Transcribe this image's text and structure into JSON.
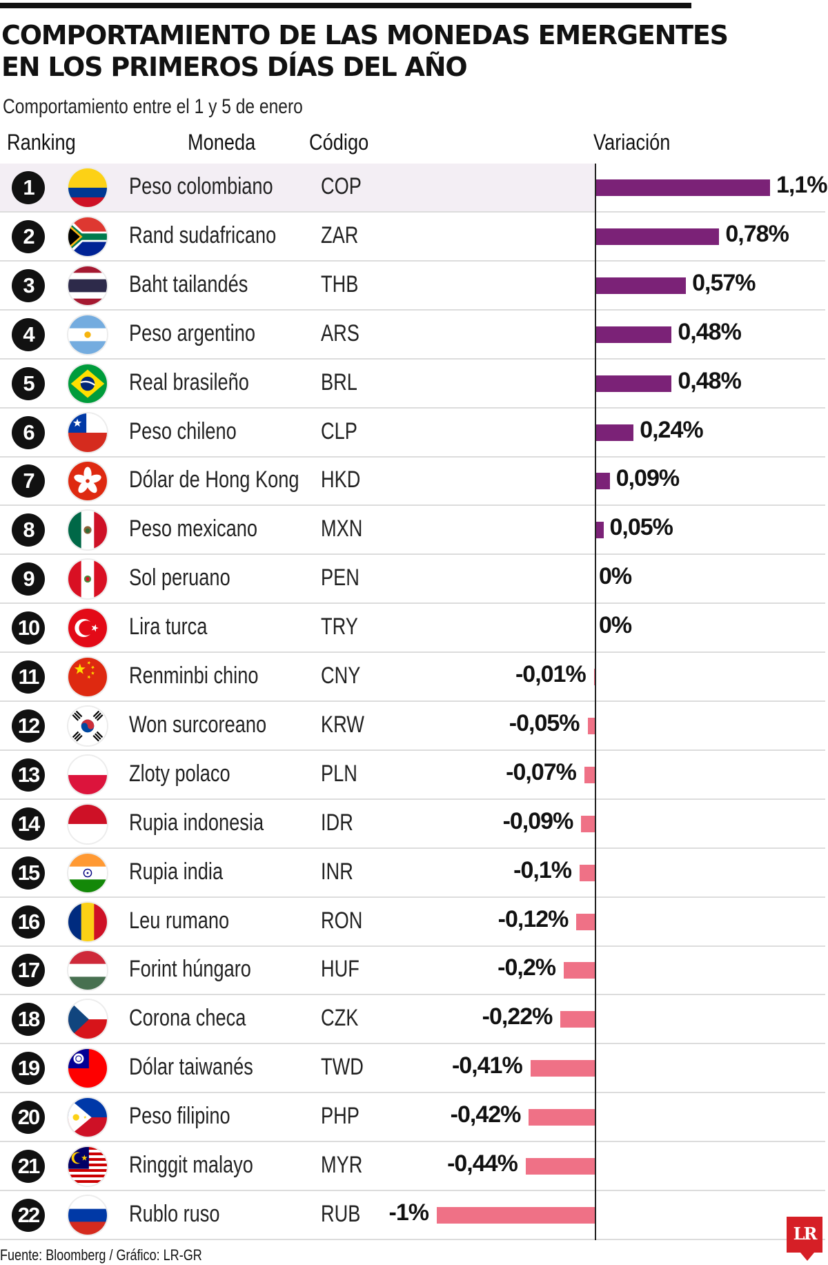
{
  "title_line1": "COMPORTAMIENTO DE LAS MONEDAS EMERGENTES",
  "title_line2": "EN LOS PRIMEROS DÍAS DEL AÑO",
  "subtitle": "Comportamiento entre el 1 y 5 de enero",
  "headers": {
    "ranking": "Ranking",
    "moneda": "Moneda",
    "codigo": "Código",
    "variacion": "Variación"
  },
  "source": "Fuente: Bloomberg / Gráfico: LR-GR",
  "logo": "LR",
  "colors": {
    "positive": "#7b2277",
    "negative": "#ef7186",
    "highlight": "#f3eef4"
  },
  "chart_data": {
    "type": "bar",
    "title": "COMPORTAMIENTO DE LAS MONEDAS EMERGENTES EN LOS PRIMEROS DÍAS DEL AÑO",
    "subtitle": "Comportamiento entre el 1 y 5 de enero",
    "xlabel": "Variación",
    "unit": "%",
    "categories": [
      "Peso colombiano",
      "Rand sudafricano",
      "Baht tailandés",
      "Peso argentino",
      "Real brasileño",
      "Peso chileno",
      "Dólar de Hong Kong",
      "Peso mexicano",
      "Sol peruano",
      "Lira turca",
      "Renminbi chino",
      "Won surcoreano",
      "Zloty polaco",
      "Rupia indonesia",
      "Rupia india",
      "Leu rumano",
      "Forint húngaro",
      "Corona checa",
      "Dólar taiwanés",
      "Peso filipino",
      "Ringgit malayo",
      "Rublo ruso"
    ],
    "values": [
      1.1,
      0.78,
      0.57,
      0.48,
      0.48,
      0.24,
      0.09,
      0.05,
      0,
      0,
      -0.01,
      -0.05,
      -0.07,
      -0.09,
      -0.1,
      -0.12,
      -0.2,
      -0.22,
      -0.41,
      -0.42,
      -0.44,
      -1
    ],
    "rows": [
      {
        "rank": "1",
        "name": "Peso colombiano",
        "code": "COP",
        "label": "1,1%",
        "value": 1.1,
        "flag": "co"
      },
      {
        "rank": "2",
        "name": "Rand sudafricano",
        "code": "ZAR",
        "label": "0,78%",
        "value": 0.78,
        "flag": "za"
      },
      {
        "rank": "3",
        "name": "Baht tailandés",
        "code": "THB",
        "label": "0,57%",
        "value": 0.57,
        "flag": "th"
      },
      {
        "rank": "4",
        "name": "Peso argentino",
        "code": "ARS",
        "label": "0,48%",
        "value": 0.48,
        "flag": "ar"
      },
      {
        "rank": "5",
        "name": "Real brasileño",
        "code": "BRL",
        "label": "0,48%",
        "value": 0.48,
        "flag": "br"
      },
      {
        "rank": "6",
        "name": "Peso chileno",
        "code": "CLP",
        "label": "0,24%",
        "value": 0.24,
        "flag": "cl"
      },
      {
        "rank": "7",
        "name": "Dólar de Hong Kong",
        "code": "HKD",
        "label": "0,09%",
        "value": 0.09,
        "flag": "hk"
      },
      {
        "rank": "8",
        "name": "Peso mexicano",
        "code": "MXN",
        "label": "0,05%",
        "value": 0.05,
        "flag": "mx"
      },
      {
        "rank": "9",
        "name": "Sol peruano",
        "code": "PEN",
        "label": "0%",
        "value": 0,
        "flag": "pe"
      },
      {
        "rank": "10",
        "name": "Lira turca",
        "code": "TRY",
        "label": "0%",
        "value": 0,
        "flag": "tr"
      },
      {
        "rank": "11",
        "name": "Renminbi chino",
        "code": "CNY",
        "label": "-0,01%",
        "value": -0.01,
        "flag": "cn"
      },
      {
        "rank": "12",
        "name": "Won surcoreano",
        "code": "KRW",
        "label": "-0,05%",
        "value": -0.05,
        "flag": "kr"
      },
      {
        "rank": "13",
        "name": "Zloty polaco",
        "code": "PLN",
        "label": "-0,07%",
        "value": -0.07,
        "flag": "pl"
      },
      {
        "rank": "14",
        "name": "Rupia indonesia",
        "code": "IDR",
        "label": "-0,09%",
        "value": -0.09,
        "flag": "id"
      },
      {
        "rank": "15",
        "name": "Rupia india",
        "code": "INR",
        "label": "-0,1%",
        "value": -0.1,
        "flag": "in"
      },
      {
        "rank": "16",
        "name": "Leu rumano",
        "code": "RON",
        "label": "-0,12%",
        "value": -0.12,
        "flag": "ro"
      },
      {
        "rank": "17",
        "name": "Forint húngaro",
        "code": "HUF",
        "label": "-0,2%",
        "value": -0.2,
        "flag": "hu"
      },
      {
        "rank": "18",
        "name": "Corona checa",
        "code": "CZK",
        "label": "-0,22%",
        "value": -0.22,
        "flag": "cz"
      },
      {
        "rank": "19",
        "name": "Dólar taiwanés",
        "code": "TWD",
        "label": "-0,41%",
        "value": -0.41,
        "flag": "tw"
      },
      {
        "rank": "20",
        "name": "Peso filipino",
        "code": "PHP",
        "label": "-0,42%",
        "value": -0.42,
        "flag": "ph"
      },
      {
        "rank": "21",
        "name": "Ringgit malayo",
        "code": "MYR",
        "label": "-0,44%",
        "value": -0.44,
        "flag": "my"
      },
      {
        "rank": "22",
        "name": "Rublo ruso",
        "code": "RUB",
        "label": "-1%",
        "value": -1,
        "flag": "ru"
      }
    ]
  }
}
